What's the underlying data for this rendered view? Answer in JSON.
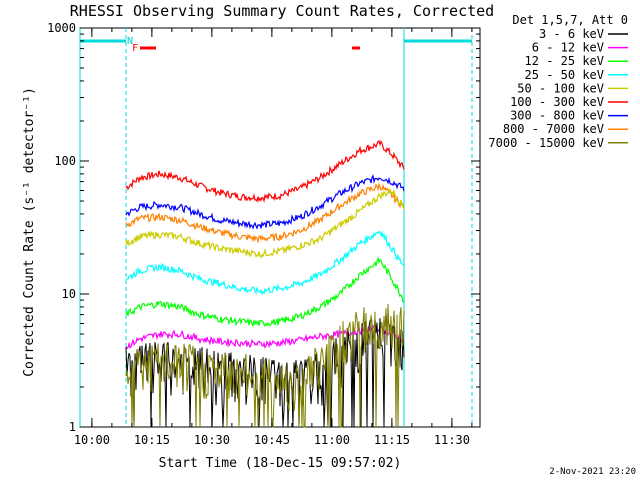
{
  "chart_data": {
    "type": "line",
    "title": "RHESSI Observing Summary Count Rates, Corrected",
    "xlabel": "Start Time (18-Dec-15 09:57:02)",
    "ylabel": "Corrected Count Rate (s⁻¹ detector⁻¹)",
    "yscale": "log",
    "ylim": [
      1,
      1000
    ],
    "xlim_minutes_after_start": [
      0,
      100
    ],
    "x_ticks": [
      {
        "label": "10:00",
        "min": 2.97
      },
      {
        "label": "10:15",
        "min": 17.97
      },
      {
        "label": "10:30",
        "min": 32.97
      },
      {
        "label": "10:45",
        "min": 47.97
      },
      {
        "label": "11:00",
        "min": 62.97
      },
      {
        "label": "11:15",
        "min": 77.97
      },
      {
        "label": "11:30",
        "min": 92.97
      }
    ],
    "y_ticks": [
      {
        "label": "1",
        "v": 1
      },
      {
        "label": "10",
        "v": 10
      },
      {
        "label": "100",
        "v": 100
      },
      {
        "label": "1000",
        "v": 1000
      }
    ],
    "legend": {
      "header": "Det 1,5,7, Att 0",
      "position": "right",
      "entries": [
        {
          "name": "3 - 6 keV",
          "color": "#000000"
        },
        {
          "name": "6 - 12 keV",
          "color": "#ff00ff"
        },
        {
          "name": "12 - 25 keV",
          "color": "#00ff00"
        },
        {
          "name": "25 - 50 keV",
          "color": "#00ffff"
        },
        {
          "name": "50 - 100 keV",
          "color": "#cccc00"
        },
        {
          "name": "100 - 300 keV",
          "color": "#ff0000"
        },
        {
          "name": "300 - 800 keV",
          "color": "#0000ff"
        },
        {
          "name": "800 - 7000 keV",
          "color": "#ff8000"
        },
        {
          "name": "7000 - 15000 keV",
          "color": "#808000"
        }
      ]
    },
    "x_min_common": [
      11.5,
      15,
      20,
      25,
      30,
      35,
      40,
      45,
      50,
      55,
      60,
      65,
      70,
      75,
      78,
      81
    ],
    "series": [
      {
        "name": "100 - 300 keV",
        "color": "#ff0000",
        "values": [
          63,
          75,
          80,
          75,
          65,
          58,
          54,
          53,
          55,
          62,
          75,
          95,
          120,
          135,
          112,
          88
        ]
      },
      {
        "name": "300 - 800 keV",
        "color": "#0000ff",
        "values": [
          40,
          45,
          47,
          45,
          40,
          36,
          34,
          33,
          34,
          38,
          46,
          57,
          68,
          76,
          70,
          62
        ]
      },
      {
        "name": "800 - 7000 keV",
        "color": "#ff8000",
        "values": [
          33,
          37,
          38,
          36,
          32,
          29,
          27,
          26,
          27,
          30,
          36,
          46,
          57,
          65,
          55,
          45
        ]
      },
      {
        "name": "50 - 100 keV",
        "color": "#cccc00",
        "values": [
          24,
          27,
          28,
          27,
          24,
          22,
          21,
          20,
          21,
          23,
          26,
          33,
          42,
          55,
          60,
          45
        ]
      },
      {
        "name": "25 - 50 keV",
        "color": "#00ffff",
        "values": [
          13,
          15,
          16,
          15,
          13,
          12,
          11,
          10.5,
          11,
          12,
          14,
          18,
          24,
          30,
          22,
          16
        ]
      },
      {
        "name": "12 - 25 keV",
        "color": "#00ff00",
        "values": [
          7,
          8,
          8.5,
          8,
          7,
          6.5,
          6.2,
          6,
          6.2,
          6.8,
          8,
          10,
          14,
          18,
          13,
          9
        ]
      },
      {
        "name": "6 - 12 keV",
        "color": "#ff00ff",
        "values": [
          4,
          4.6,
          5,
          5,
          4.6,
          4.4,
          4.3,
          4.2,
          4.3,
          4.5,
          4.8,
          5,
          5.3,
          5.5,
          5,
          4.5
        ]
      },
      {
        "name": "3 - 6 keV",
        "color": "#000000",
        "values": [
          2.8,
          3,
          3,
          3,
          2.8,
          2.6,
          2.5,
          2.4,
          2.3,
          2.3,
          2.5,
          3.5,
          4.5,
          5,
          4.8,
          4.5
        ]
      },
      {
        "name": "7000 - 15000 keV",
        "color": "#808000",
        "values": [
          2.8,
          3,
          3,
          3,
          2.8,
          2.6,
          2.5,
          2.4,
          2.3,
          2.3,
          3,
          4.5,
          5.5,
          6,
          5.8,
          5.5
        ]
      }
    ],
    "annotations": [
      {
        "text": "N",
        "color": "#00cccc",
        "min": 12.5
      },
      {
        "text": "F",
        "color": "#ff0000",
        "min": 13.8
      }
    ],
    "night_intervals_min": [
      [
        0,
        11.5
      ],
      [
        81,
        98
      ]
    ],
    "flare_intervals_min": [
      [
        15,
        19
      ],
      [
        68,
        70
      ]
    ],
    "footer": "2-Nov-2021 23:20"
  }
}
